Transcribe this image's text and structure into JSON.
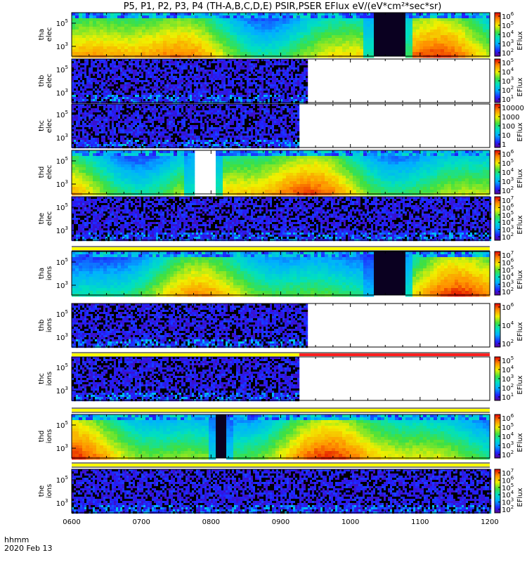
{
  "chart_data": {
    "type": "heatmap",
    "title": "P5, P1, P2, P3, P4 (TH-A,B,C,D,E) PSIR,PSER EFlux eV/(eV*cm²*sec*sr)",
    "x_ticks": [
      "0600",
      "0700",
      "0800",
      "0900",
      "1000",
      "1100",
      "1200"
    ],
    "x_range": [
      "06:00",
      "12:00"
    ],
    "footer": {
      "line1": "hhmm",
      "line2": "2020 Feb 13"
    },
    "colorbar_label": "EFlux",
    "panels": [
      {
        "label1": "tha",
        "label2": "elec",
        "y_ticks": [
          [
            "10",
            "5"
          ],
          [
            "10",
            "3"
          ]
        ],
        "cb_ticks": [
          [
            "10",
            "6"
          ],
          [
            "10",
            "5"
          ],
          [
            "10",
            "4"
          ],
          [
            "10",
            "3"
          ],
          [
            "10",
            "2"
          ]
        ],
        "data_end": "12:00",
        "gap": [
          "10:20",
          "10:46"
        ],
        "kind": "smooth"
      },
      {
        "label1": "thb",
        "label2": "elec",
        "y_ticks": [
          [
            "10",
            "5"
          ],
          [
            "10",
            "3"
          ]
        ],
        "cb_ticks": [
          [
            "10",
            "5"
          ],
          [
            "10",
            "4"
          ],
          [
            "10",
            "3"
          ],
          [
            "10",
            "2"
          ],
          [
            "10",
            "1"
          ]
        ],
        "data_end": "09:23",
        "kind": "noise"
      },
      {
        "label1": "thc",
        "label2": "elec",
        "y_ticks": [
          [
            "10",
            "5"
          ],
          [
            "10",
            "3"
          ]
        ],
        "cb_ticks": [
          [
            "10000",
            ""
          ],
          [
            "1000",
            ""
          ],
          [
            "100",
            ""
          ],
          [
            "10",
            ""
          ],
          [
            "1",
            ""
          ]
        ],
        "data_end": "09:16",
        "kind": "noise"
      },
      {
        "label1": "thd",
        "label2": "elec",
        "y_ticks": [
          [
            "10",
            "5"
          ],
          [
            "10",
            "3"
          ]
        ],
        "cb_ticks": [
          [
            "10",
            "6"
          ],
          [
            "10",
            "5"
          ],
          [
            "10",
            "4"
          ],
          [
            "10",
            "3"
          ],
          [
            "10",
            "2"
          ]
        ],
        "data_end": "12:00",
        "gap": [
          "07:46",
          "08:03"
        ],
        "kind": "smooth"
      },
      {
        "label1": "the",
        "label2": "elec",
        "y_ticks": [
          [
            "10",
            "5"
          ],
          [
            "10",
            "3"
          ]
        ],
        "cb_ticks": [
          [
            "10",
            "7"
          ],
          [
            "10",
            "6"
          ],
          [
            "10",
            "5"
          ],
          [
            "10",
            "4"
          ],
          [
            "10",
            "3"
          ],
          [
            "10",
            "2"
          ]
        ],
        "data_end": "12:00",
        "kind": "noise"
      },
      {
        "label1": "tha",
        "label2": "ions",
        "y_ticks": [
          [
            "10",
            "5"
          ],
          [
            "10",
            "3"
          ]
        ],
        "cb_ticks": [
          [
            "10",
            "7"
          ],
          [
            "10",
            "6"
          ],
          [
            "10",
            "5"
          ],
          [
            "10",
            "4"
          ],
          [
            "10",
            "3"
          ],
          [
            "10",
            "2"
          ]
        ],
        "data_end": "12:00",
        "gap": [
          "10:20",
          "10:46"
        ],
        "kind": "smooth"
      },
      {
        "label1": "thb",
        "label2": "ions",
        "y_ticks": [
          [
            "10",
            "5"
          ],
          [
            "10",
            "3"
          ]
        ],
        "cb_ticks": [
          [
            "10",
            "6"
          ],
          [
            "10",
            "4"
          ],
          [
            "10",
            "2"
          ]
        ],
        "data_end": "09:23",
        "kind": "noise"
      },
      {
        "label1": "thc",
        "label2": "ions",
        "y_ticks": [
          [
            "10",
            "5"
          ],
          [
            "10",
            "3"
          ]
        ],
        "cb_ticks": [
          [
            "10",
            "5"
          ],
          [
            "10",
            "4"
          ],
          [
            "10",
            "3"
          ],
          [
            "10",
            "2"
          ],
          [
            "10",
            "1"
          ]
        ],
        "data_end": "09:16",
        "kind": "noise"
      },
      {
        "label1": "thd",
        "label2": "ions",
        "y_ticks": [
          [
            "10",
            "5"
          ],
          [
            "10",
            "3"
          ]
        ],
        "cb_ticks": [
          [
            "10",
            "6"
          ],
          [
            "10",
            "5"
          ],
          [
            "10",
            "4"
          ],
          [
            "10",
            "3"
          ],
          [
            "10",
            "2"
          ]
        ],
        "data_end": "12:00",
        "gap": [
          "08:05",
          "08:12"
        ],
        "kind": "smooth"
      },
      {
        "label1": "the",
        "label2": "ions",
        "y_ticks": [
          [
            "10",
            "5"
          ],
          [
            "10",
            "3"
          ]
        ],
        "cb_ticks": [
          [
            "10",
            "7"
          ],
          [
            "10",
            "6"
          ],
          [
            "10",
            "5"
          ],
          [
            "10",
            "4"
          ],
          [
            "10",
            "3"
          ],
          [
            "10",
            "2"
          ]
        ],
        "data_end": "12:00",
        "kind": "noise"
      }
    ]
  }
}
